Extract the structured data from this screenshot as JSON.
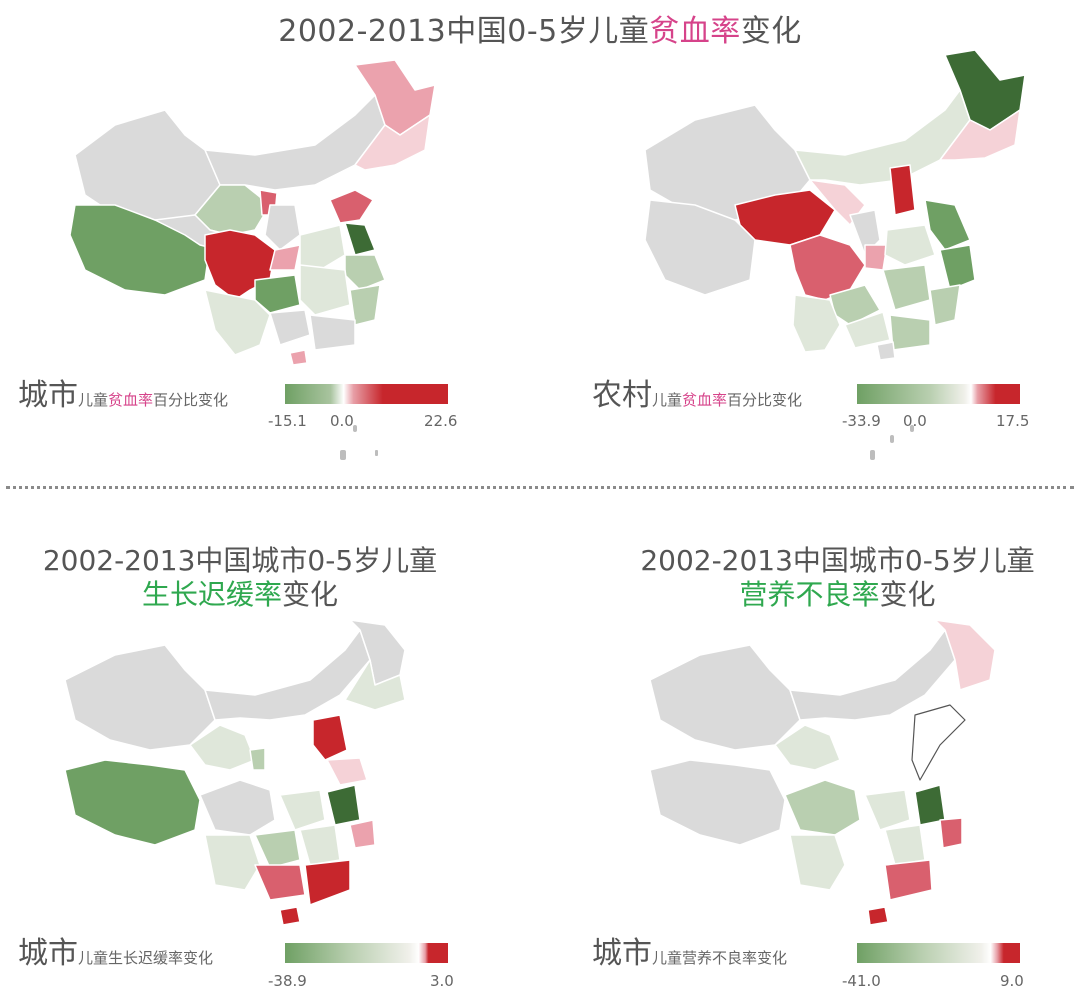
{
  "titles": {
    "top_prefix": "2002-2013中国0-5岁儿童",
    "top_highlight": "贫血率",
    "top_suffix": "变化",
    "stunting_line1": "2002-2013中国城市0-5岁儿童",
    "stunting_highlight": "生长迟缓率",
    "stunting_suffix": "变化",
    "underweight_line1": "2002-2013中国城市0-5岁儿童",
    "underweight_highlight": "营养不良率",
    "underweight_suffix": "变化"
  },
  "legends": {
    "urban_anemia": {
      "big": "城市",
      "small_prefix": "儿童",
      "small_highlight": "贫血率",
      "small_suffix": "百分比变化",
      "min": "-15.1",
      "mid": "0.0",
      "max": "22.6"
    },
    "rural_anemia": {
      "big": "农村",
      "small_prefix": "儿童",
      "small_highlight": "贫血率",
      "small_suffix": "百分比变化",
      "min": "-33.9",
      "mid": "0.0",
      "max": "17.5"
    },
    "urban_stunting": {
      "big": "城市",
      "small": "儿童生长迟缓率变化",
      "min": "-38.9",
      "max": "3.0"
    },
    "urban_underweight": {
      "big": "城市",
      "small": "儿童营养不良率变化",
      "min": "-41.0",
      "max": "9.0"
    }
  },
  "colors": {
    "nodata": "#dadada",
    "green_dark": "#3d6b35",
    "green_mid": "#6fa064",
    "green_light": "#b9cfb0",
    "green_pale": "#dfe7da",
    "red_dark": "#c7262c",
    "red_mid": "#d9606e",
    "red_light": "#eba2ad",
    "red_pale": "#f5d2d7",
    "accent_pink": "#d6438a",
    "accent_green": "#2fa84f"
  }
}
